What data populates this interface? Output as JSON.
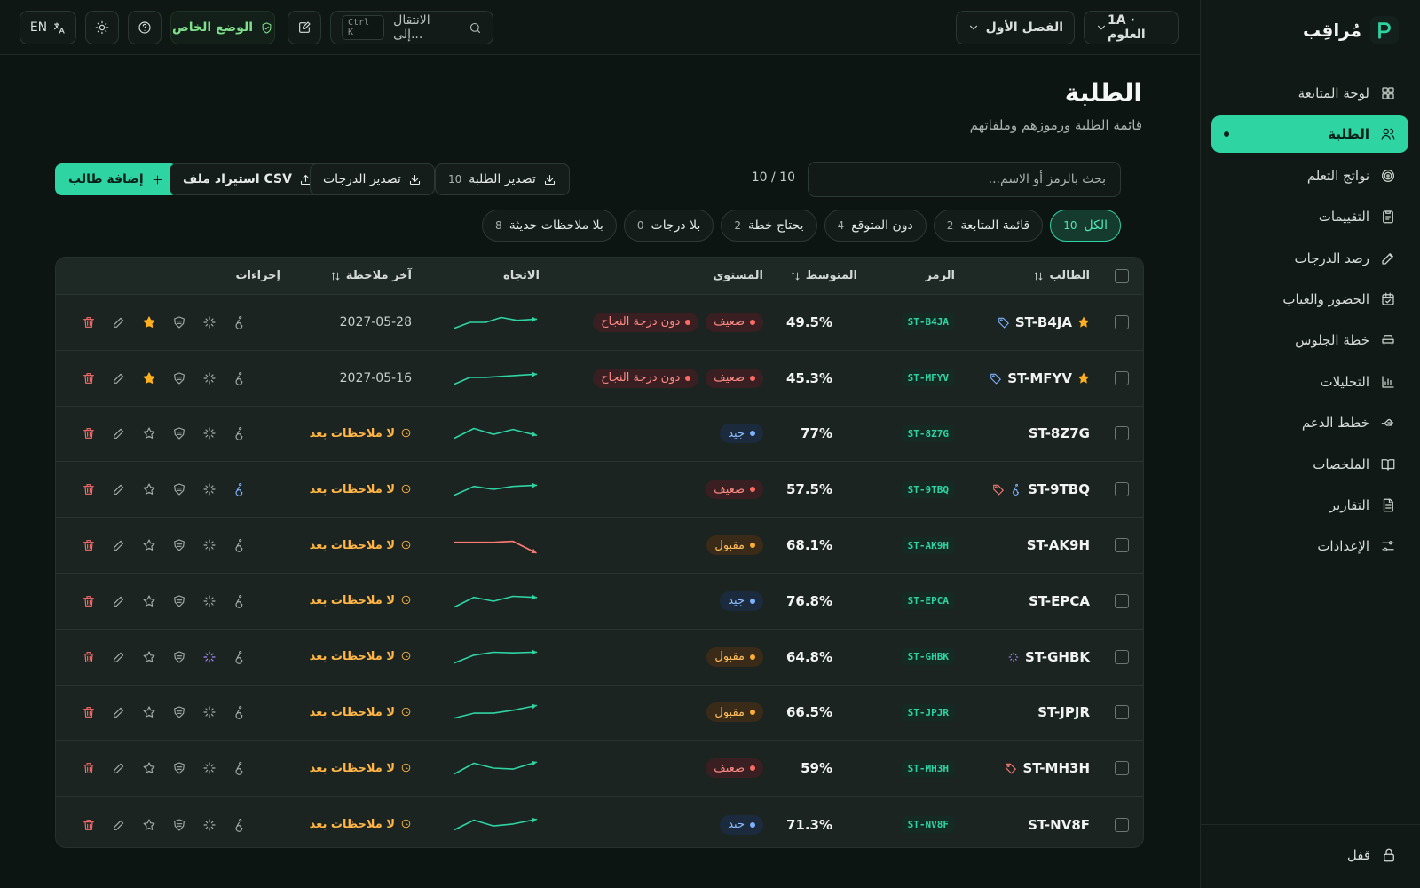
{
  "app": {
    "name": "مُراقِب"
  },
  "sidebar": {
    "items": [
      {
        "label": "لوحة المتابعة",
        "icon": "dashboard-icon"
      },
      {
        "label": "الطلبة",
        "icon": "users-icon",
        "active": true
      },
      {
        "label": "نواتج التعلم",
        "icon": "target-icon"
      },
      {
        "label": "التقييمات",
        "icon": "clipboard-icon"
      },
      {
        "label": "رصد الدرجات",
        "icon": "pencil-icon"
      },
      {
        "label": "الحضور والغياب",
        "icon": "calendar-icon"
      },
      {
        "label": "خطة الجلوس",
        "icon": "seat-icon"
      },
      {
        "label": "التحليلات",
        "icon": "chart-icon"
      },
      {
        "label": "خطط الدعم",
        "icon": "hand-icon"
      },
      {
        "label": "الملخصات",
        "icon": "book-icon"
      },
      {
        "label": "التقارير",
        "icon": "report-icon"
      },
      {
        "label": "الإعدادات",
        "icon": "sliders-icon"
      }
    ],
    "lock_label": "قفل"
  },
  "header": {
    "class_select": "1A · العلوم",
    "term_select": "الفصل الأول",
    "search_placeholder": "الانتقال إلى...",
    "shortcut": "Ctrl K",
    "private_mode": "الوضع الخاص",
    "lang": "EN"
  },
  "page": {
    "title": "الطلبة",
    "subtitle": "قائمة الطلبة ورموزهم وملفاتهم"
  },
  "toolbar": {
    "search_placeholder": "بحث بالرمز أو الاسم...",
    "count": "10 / 10",
    "export_students": "تصدير الطلبة",
    "export_students_count": "10",
    "export_grades": "تصدير الدرجات",
    "import_csv": "استيراد ملف CSV",
    "add_student": "إضافة طالب"
  },
  "filters": [
    {
      "label": "الكل",
      "count": "10",
      "active": true
    },
    {
      "label": "قائمة المتابعة",
      "count": "2"
    },
    {
      "label": "دون المتوقع",
      "count": "4"
    },
    {
      "label": "يحتاج خطة",
      "count": "2"
    },
    {
      "label": "بلا درجات",
      "count": "0"
    },
    {
      "label": "بلا ملاحظات حديثة",
      "count": "8"
    }
  ],
  "table": {
    "headers": {
      "student": "الطالب",
      "code": "الرمز",
      "average": "المتوسط",
      "level": "المستوى",
      "trend": "الاتجاه",
      "last_note": "آخر ملاحظة",
      "actions": "إجراءات"
    },
    "no_notes": "لا ملاحظات بعد",
    "below_pass": "دون درجة النجاح",
    "rows": [
      {
        "name": "ST-B4JA",
        "code": "ST-B4JA",
        "avg": "49.5%",
        "level": "ضعيف",
        "level_key": "weak",
        "fail": true,
        "note": "2027-05-28",
        "watch": true,
        "tag": "blue",
        "trend": [
          0.2,
          0.5,
          0.5,
          0.75,
          0.6,
          0.65
        ],
        "trend_color": "#2fd4a3",
        "star": true
      },
      {
        "name": "ST-MFYV",
        "code": "ST-MFYV",
        "avg": "45.3%",
        "level": "ضعيف",
        "level_key": "weak",
        "fail": true,
        "note": "2027-05-16",
        "watch": true,
        "tag": "blue",
        "trend": [
          0.2,
          0.55,
          0.55,
          0.6,
          0.65,
          0.7
        ],
        "trend_color": "#2fd4a3",
        "star": true
      },
      {
        "name": "ST-8Z7G",
        "code": "ST-8Z7G",
        "avg": "77%",
        "level": "جيد",
        "level_key": "good",
        "fail": false,
        "note": "",
        "trend": [
          0.25,
          0.75,
          0.45,
          0.7,
          0.45
        ],
        "trend_color": "#2fd4a3"
      },
      {
        "name": "ST-9TBQ",
        "code": "ST-9TBQ",
        "avg": "57.5%",
        "level": "ضعيف",
        "level_key": "weak",
        "fail": false,
        "note": "",
        "tag": "red",
        "a11y": true,
        "trend": [
          0.2,
          0.65,
          0.5,
          0.65,
          0.7
        ],
        "trend_color": "#2fd4a3"
      },
      {
        "name": "ST-AK9H",
        "code": "ST-AK9H",
        "avg": "68.1%",
        "level": "مقبول",
        "level_key": "ok",
        "fail": false,
        "note": "",
        "trend": [
          0.65,
          0.65,
          0.65,
          0.7,
          0.2
        ],
        "trend_color": "#ff7b72"
      },
      {
        "name": "ST-EPCA",
        "code": "ST-EPCA",
        "avg": "76.8%",
        "level": "جيد",
        "level_key": "good",
        "fail": false,
        "note": "",
        "trend": [
          0.2,
          0.7,
          0.5,
          0.75,
          0.7
        ],
        "trend_color": "#2fd4a3"
      },
      {
        "name": "ST-GHBK",
        "code": "ST-GHBK",
        "avg": "64.8%",
        "level": "مقبول",
        "level_key": "ok",
        "fail": false,
        "note": "",
        "spark": true,
        "trend": [
          0.2,
          0.6,
          0.75,
          0.72,
          0.75
        ],
        "trend_color": "#2fd4a3"
      },
      {
        "name": "ST-JPJR",
        "code": "ST-JPJR",
        "avg": "66.5%",
        "level": "مقبول",
        "level_key": "ok",
        "fail": false,
        "note": "",
        "trend": [
          0.2,
          0.45,
          0.45,
          0.6,
          0.8
        ],
        "trend_color": "#2fd4a3"
      },
      {
        "name": "ST-MH3H",
        "code": "ST-MH3H",
        "avg": "59%",
        "level": "ضعيف",
        "level_key": "weak",
        "fail": false,
        "note": "",
        "tag": "red",
        "trend": [
          0.2,
          0.75,
          0.5,
          0.45,
          0.75
        ],
        "trend_color": "#2fd4a3"
      },
      {
        "name": "ST-NV8F",
        "code": "ST-NV8F",
        "avg": "71.3%",
        "level": "جيد",
        "level_key": "good",
        "fail": false,
        "note": "",
        "trend": [
          0.25,
          0.75,
          0.45,
          0.55,
          0.75
        ],
        "trend_color": "#2fd4a3"
      }
    ]
  }
}
